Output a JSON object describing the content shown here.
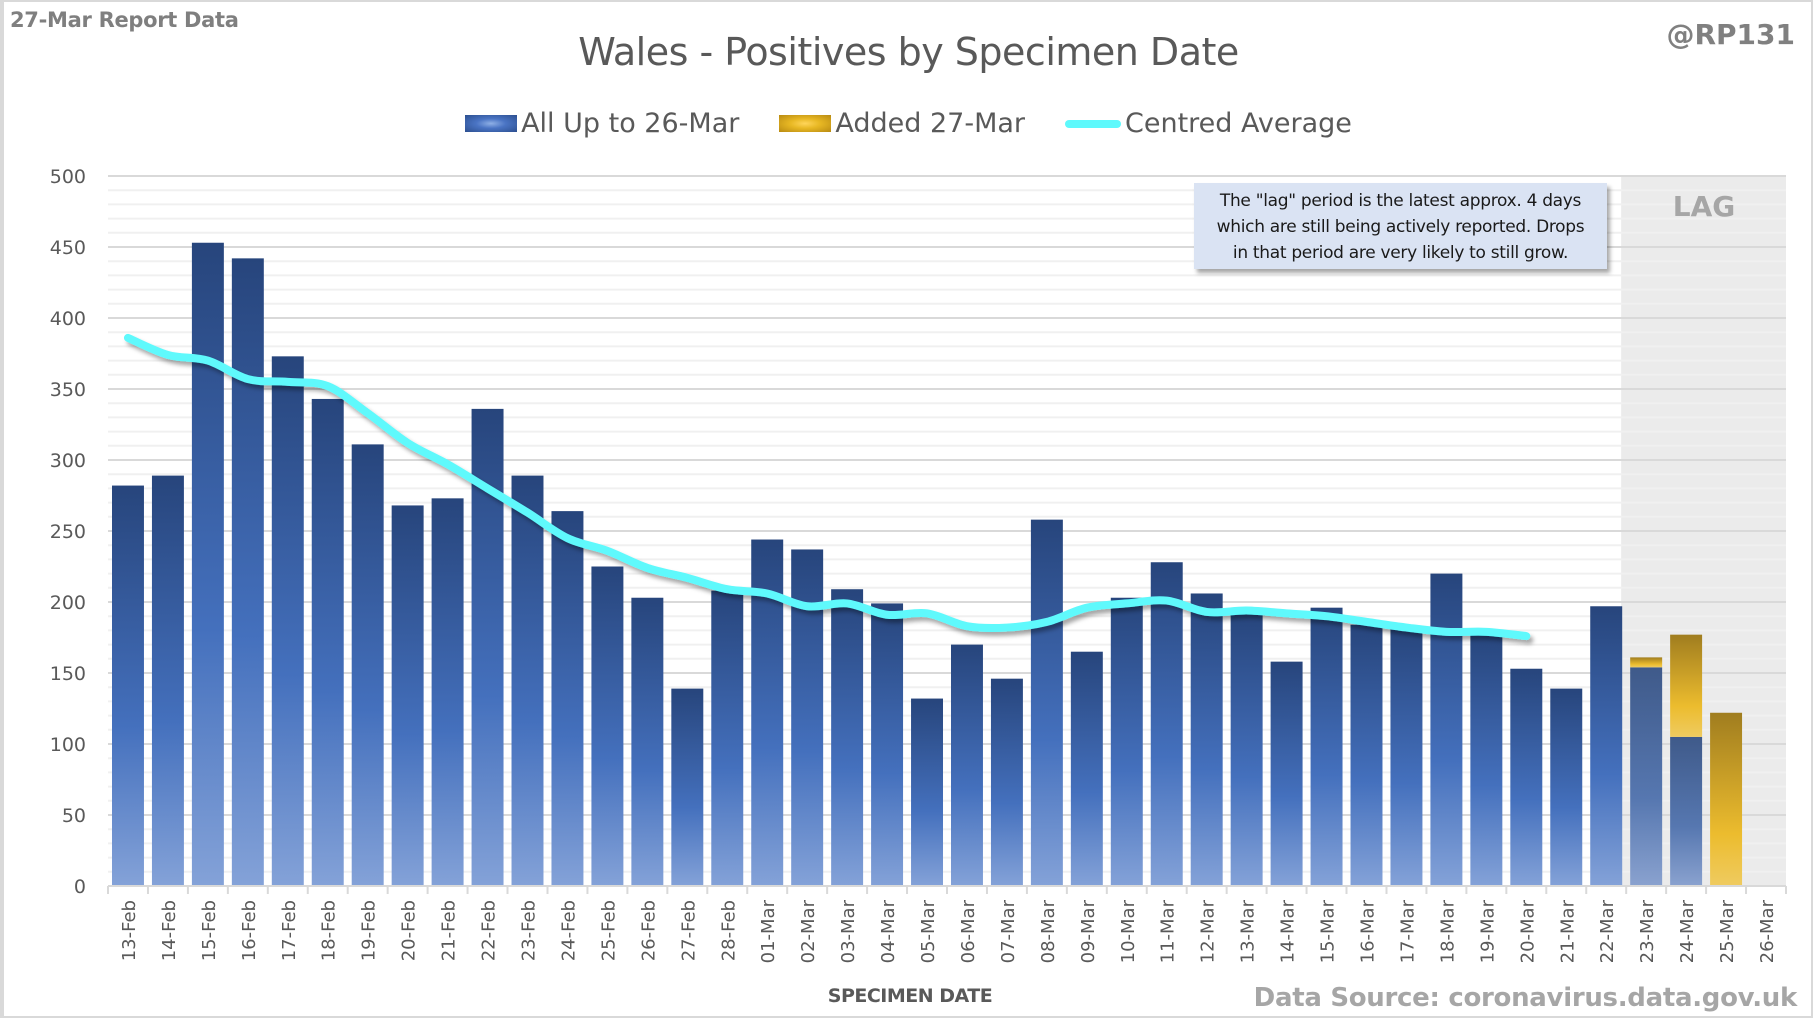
{
  "header": {
    "report_label": "27-Mar Report Data",
    "handle": "@RP131",
    "title": "Wales - Positives by Specimen Date"
  },
  "legend": [
    {
      "label": "All Up to 26-Mar",
      "icon": "blue-bar-swatch"
    },
    {
      "label": "Added 27-Mar",
      "icon": "gold-bar-swatch"
    },
    {
      "label": "Centred Average",
      "icon": "cyan-line-swatch"
    }
  ],
  "annotation": {
    "lines": [
      "The \"lag\" period is the latest approx. 4 days",
      "which are still being actively reported.  Drops",
      "in that period are very likely to still grow."
    ]
  },
  "lag_label": "LAG",
  "footer": {
    "xaxis_title": "SPECIMEN DATE",
    "source": "Data Source: coronavirus.data.gov.uk"
  },
  "colors": {
    "blue_series": "#2c4f8f",
    "gold_series": "#e8b824",
    "average_line": "#5ef9fc",
    "lag_band": "#ebebeb",
    "annotation_bg": "#dae3f3"
  },
  "chart_data": {
    "type": "bar",
    "stacked": true,
    "title": "Wales - Positives by Specimen Date",
    "xlabel": "SPECIMEN DATE",
    "ylabel": "",
    "ylim": [
      0,
      500
    ],
    "yticks": [
      0,
      50,
      100,
      150,
      200,
      250,
      300,
      350,
      400,
      450,
      500
    ],
    "grid": true,
    "legend_position": "top-center",
    "lag_categories": [
      "23-Mar",
      "24-Mar",
      "25-Mar",
      "26-Mar"
    ],
    "categories": [
      "13-Feb",
      "14-Feb",
      "15-Feb",
      "16-Feb",
      "17-Feb",
      "18-Feb",
      "19-Feb",
      "20-Feb",
      "21-Feb",
      "22-Feb",
      "23-Feb",
      "24-Feb",
      "25-Feb",
      "26-Feb",
      "27-Feb",
      "28-Feb",
      "01-Mar",
      "02-Mar",
      "03-Mar",
      "04-Mar",
      "05-Mar",
      "06-Mar",
      "07-Mar",
      "08-Mar",
      "09-Mar",
      "10-Mar",
      "11-Mar",
      "12-Mar",
      "13-Mar",
      "14-Mar",
      "15-Mar",
      "16-Mar",
      "17-Mar",
      "18-Mar",
      "19-Mar",
      "20-Mar",
      "21-Mar",
      "22-Mar",
      "23-Mar",
      "24-Mar",
      "25-Mar",
      "26-Mar"
    ],
    "series": [
      {
        "name": "All Up to 26-Mar",
        "type": "bar",
        "values": [
          282,
          289,
          453,
          442,
          373,
          343,
          311,
          268,
          273,
          336,
          289,
          264,
          225,
          203,
          139,
          208,
          244,
          237,
          209,
          199,
          132,
          170,
          146,
          258,
          165,
          203,
          228,
          206,
          192,
          158,
          196,
          184,
          182,
          220,
          178,
          153,
          139,
          197,
          154,
          105,
          0,
          0
        ]
      },
      {
        "name": "Added 27-Mar",
        "type": "bar",
        "values": [
          0,
          0,
          0,
          0,
          0,
          0,
          0,
          0,
          0,
          0,
          0,
          0,
          0,
          0,
          0,
          0,
          0,
          0,
          0,
          0,
          0,
          0,
          0,
          0,
          0,
          0,
          0,
          0,
          0,
          0,
          0,
          0,
          0,
          0,
          0,
          0,
          0,
          0,
          7,
          72,
          122,
          0
        ]
      },
      {
        "name": "Centred Average",
        "type": "line",
        "values": [
          386,
          374,
          370,
          357,
          355,
          352,
          333,
          312,
          297,
          280,
          263,
          245,
          236,
          224,
          217,
          209,
          206,
          197,
          199,
          191,
          192,
          183,
          182,
          186,
          196,
          199,
          201,
          193,
          194,
          192,
          190,
          186,
          182,
          179,
          179,
          176,
          null,
          null,
          null,
          null,
          null,
          null
        ]
      }
    ]
  }
}
